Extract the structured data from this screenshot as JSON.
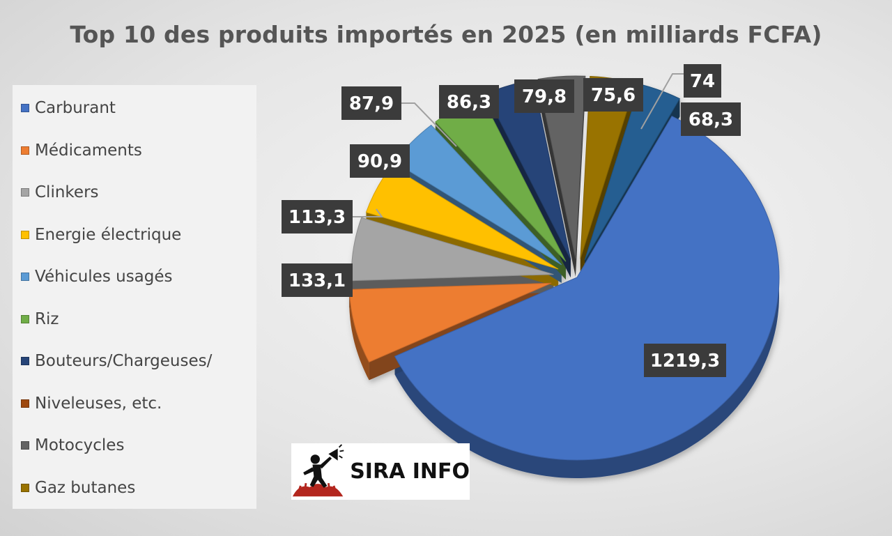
{
  "chart_data": {
    "type": "pie",
    "title": "Top 10 des produits importés en 2025 (en milliards FCFA)",
    "legend_position": "left",
    "legend": [
      {
        "label": "Carburant",
        "color": "#4472c4"
      },
      {
        "label": "Médicaments",
        "color": "#ed7d31"
      },
      {
        "label": "Clinkers",
        "color": "#a5a5a5"
      },
      {
        "label": "Energie électrique",
        "color": "#ffc000"
      },
      {
        "label": "Véhicules usagés",
        "color": "#5b9bd5"
      },
      {
        "label": "Riz",
        "color": "#70ad47"
      },
      {
        "label": "Bouteurs/Chargeuses/",
        "color": "#264478"
      },
      {
        "label": "Niveleuses, etc.",
        "color": "#9e480e"
      },
      {
        "label": "Motocycles",
        "color": "#636363"
      },
      {
        "label": "Gaz butanes",
        "color": "#997300"
      }
    ],
    "slices": [
      {
        "value": 1219.3,
        "label": "1219,3",
        "color": "#4472c4"
      },
      {
        "value": 133.1,
        "label": "133,1",
        "color": "#ed7d31"
      },
      {
        "value": 113.3,
        "label": "113,3",
        "color": "#a5a5a5"
      },
      {
        "value": 90.9,
        "label": "90,9",
        "color": "#ffc000"
      },
      {
        "value": 87.9,
        "label": "87,9",
        "color": "#5b9bd5"
      },
      {
        "value": 86.3,
        "label": "86,3",
        "color": "#70ad47"
      },
      {
        "value": 79.8,
        "label": "79,8",
        "color": "#264478"
      },
      {
        "value": 75.6,
        "label": "75,6",
        "color": "#636363"
      },
      {
        "value": 74,
        "label": "74",
        "color": "#997300"
      },
      {
        "value": 68.3,
        "label": "68,3",
        "color": "#255e91"
      }
    ]
  },
  "logo": {
    "text": "SIRA INFO"
  }
}
